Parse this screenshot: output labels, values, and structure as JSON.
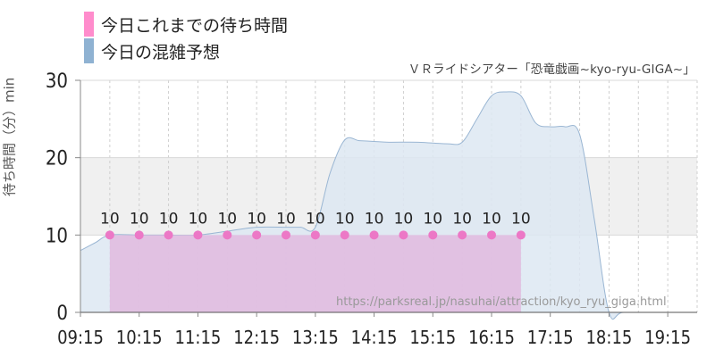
{
  "legend": {
    "current_label": "今日これまでの待ち時間",
    "forecast_label": "今日の混雑予想"
  },
  "subtitle": "ＶＲライドシアター「恐竜戯画~kyo-ryu-GIGA~」",
  "watermark": "https://parksreal.jp/nasuhai/attraction/kyo_ryu_giga.html",
  "colors": {
    "current_fill": "#e1bde0",
    "current_point": "#ec78c6",
    "current_swatch": "#ff8ccc",
    "forecast_fill": "#dde8f2",
    "forecast_line": "#9ab6d3",
    "forecast_swatch": "#8fb2d2",
    "band": "#f0f0f0"
  },
  "chart_data": {
    "type": "area",
    "ylabel": "待ち時間（分）min",
    "ylim": [
      0,
      30
    ],
    "yticks": [
      0,
      10,
      20,
      30
    ],
    "xlim": [
      "09:15",
      "19:45"
    ],
    "xticks": [
      "09:15",
      "10:15",
      "11:15",
      "12:15",
      "13:15",
      "14:15",
      "15:15",
      "16:15",
      "17:15",
      "18:15",
      "19:15"
    ],
    "grid": {
      "vertical_every_minutes": 30,
      "horizontal_band": [
        10,
        20
      ]
    },
    "series": [
      {
        "name": "今日これまでの待ち時間",
        "type": "area",
        "show_labels": true,
        "x": [
          "09:45",
          "10:15",
          "10:45",
          "11:15",
          "11:45",
          "12:15",
          "12:45",
          "13:15",
          "13:45",
          "14:15",
          "14:45",
          "15:15",
          "15:45",
          "16:15",
          "16:45"
        ],
        "values": [
          10,
          10,
          10,
          10,
          10,
          10,
          10,
          10,
          10,
          10,
          10,
          10,
          10,
          10,
          10
        ]
      },
      {
        "name": "今日の混雑予想",
        "type": "area",
        "x": [
          "09:15",
          "09:30",
          "09:45",
          "10:15",
          "10:45",
          "11:15",
          "11:45",
          "12:15",
          "12:45",
          "13:00",
          "13:15",
          "13:30",
          "13:45",
          "14:00",
          "14:15",
          "14:30",
          "15:00",
          "15:30",
          "15:45",
          "16:00",
          "16:15",
          "16:30",
          "16:45",
          "17:00",
          "17:15",
          "17:30",
          "17:45",
          "18:00",
          "18:15",
          "18:30",
          "19:15",
          "19:45"
        ],
        "values": [
          8,
          9,
          10,
          10,
          10,
          10,
          10.5,
          11,
          11,
          11,
          11,
          18,
          22.3,
          22.2,
          22.1,
          22,
          22,
          21.8,
          22,
          25,
          28,
          28.5,
          28,
          24.5,
          24,
          24,
          23,
          12,
          0,
          0,
          0,
          0
        ]
      }
    ]
  }
}
